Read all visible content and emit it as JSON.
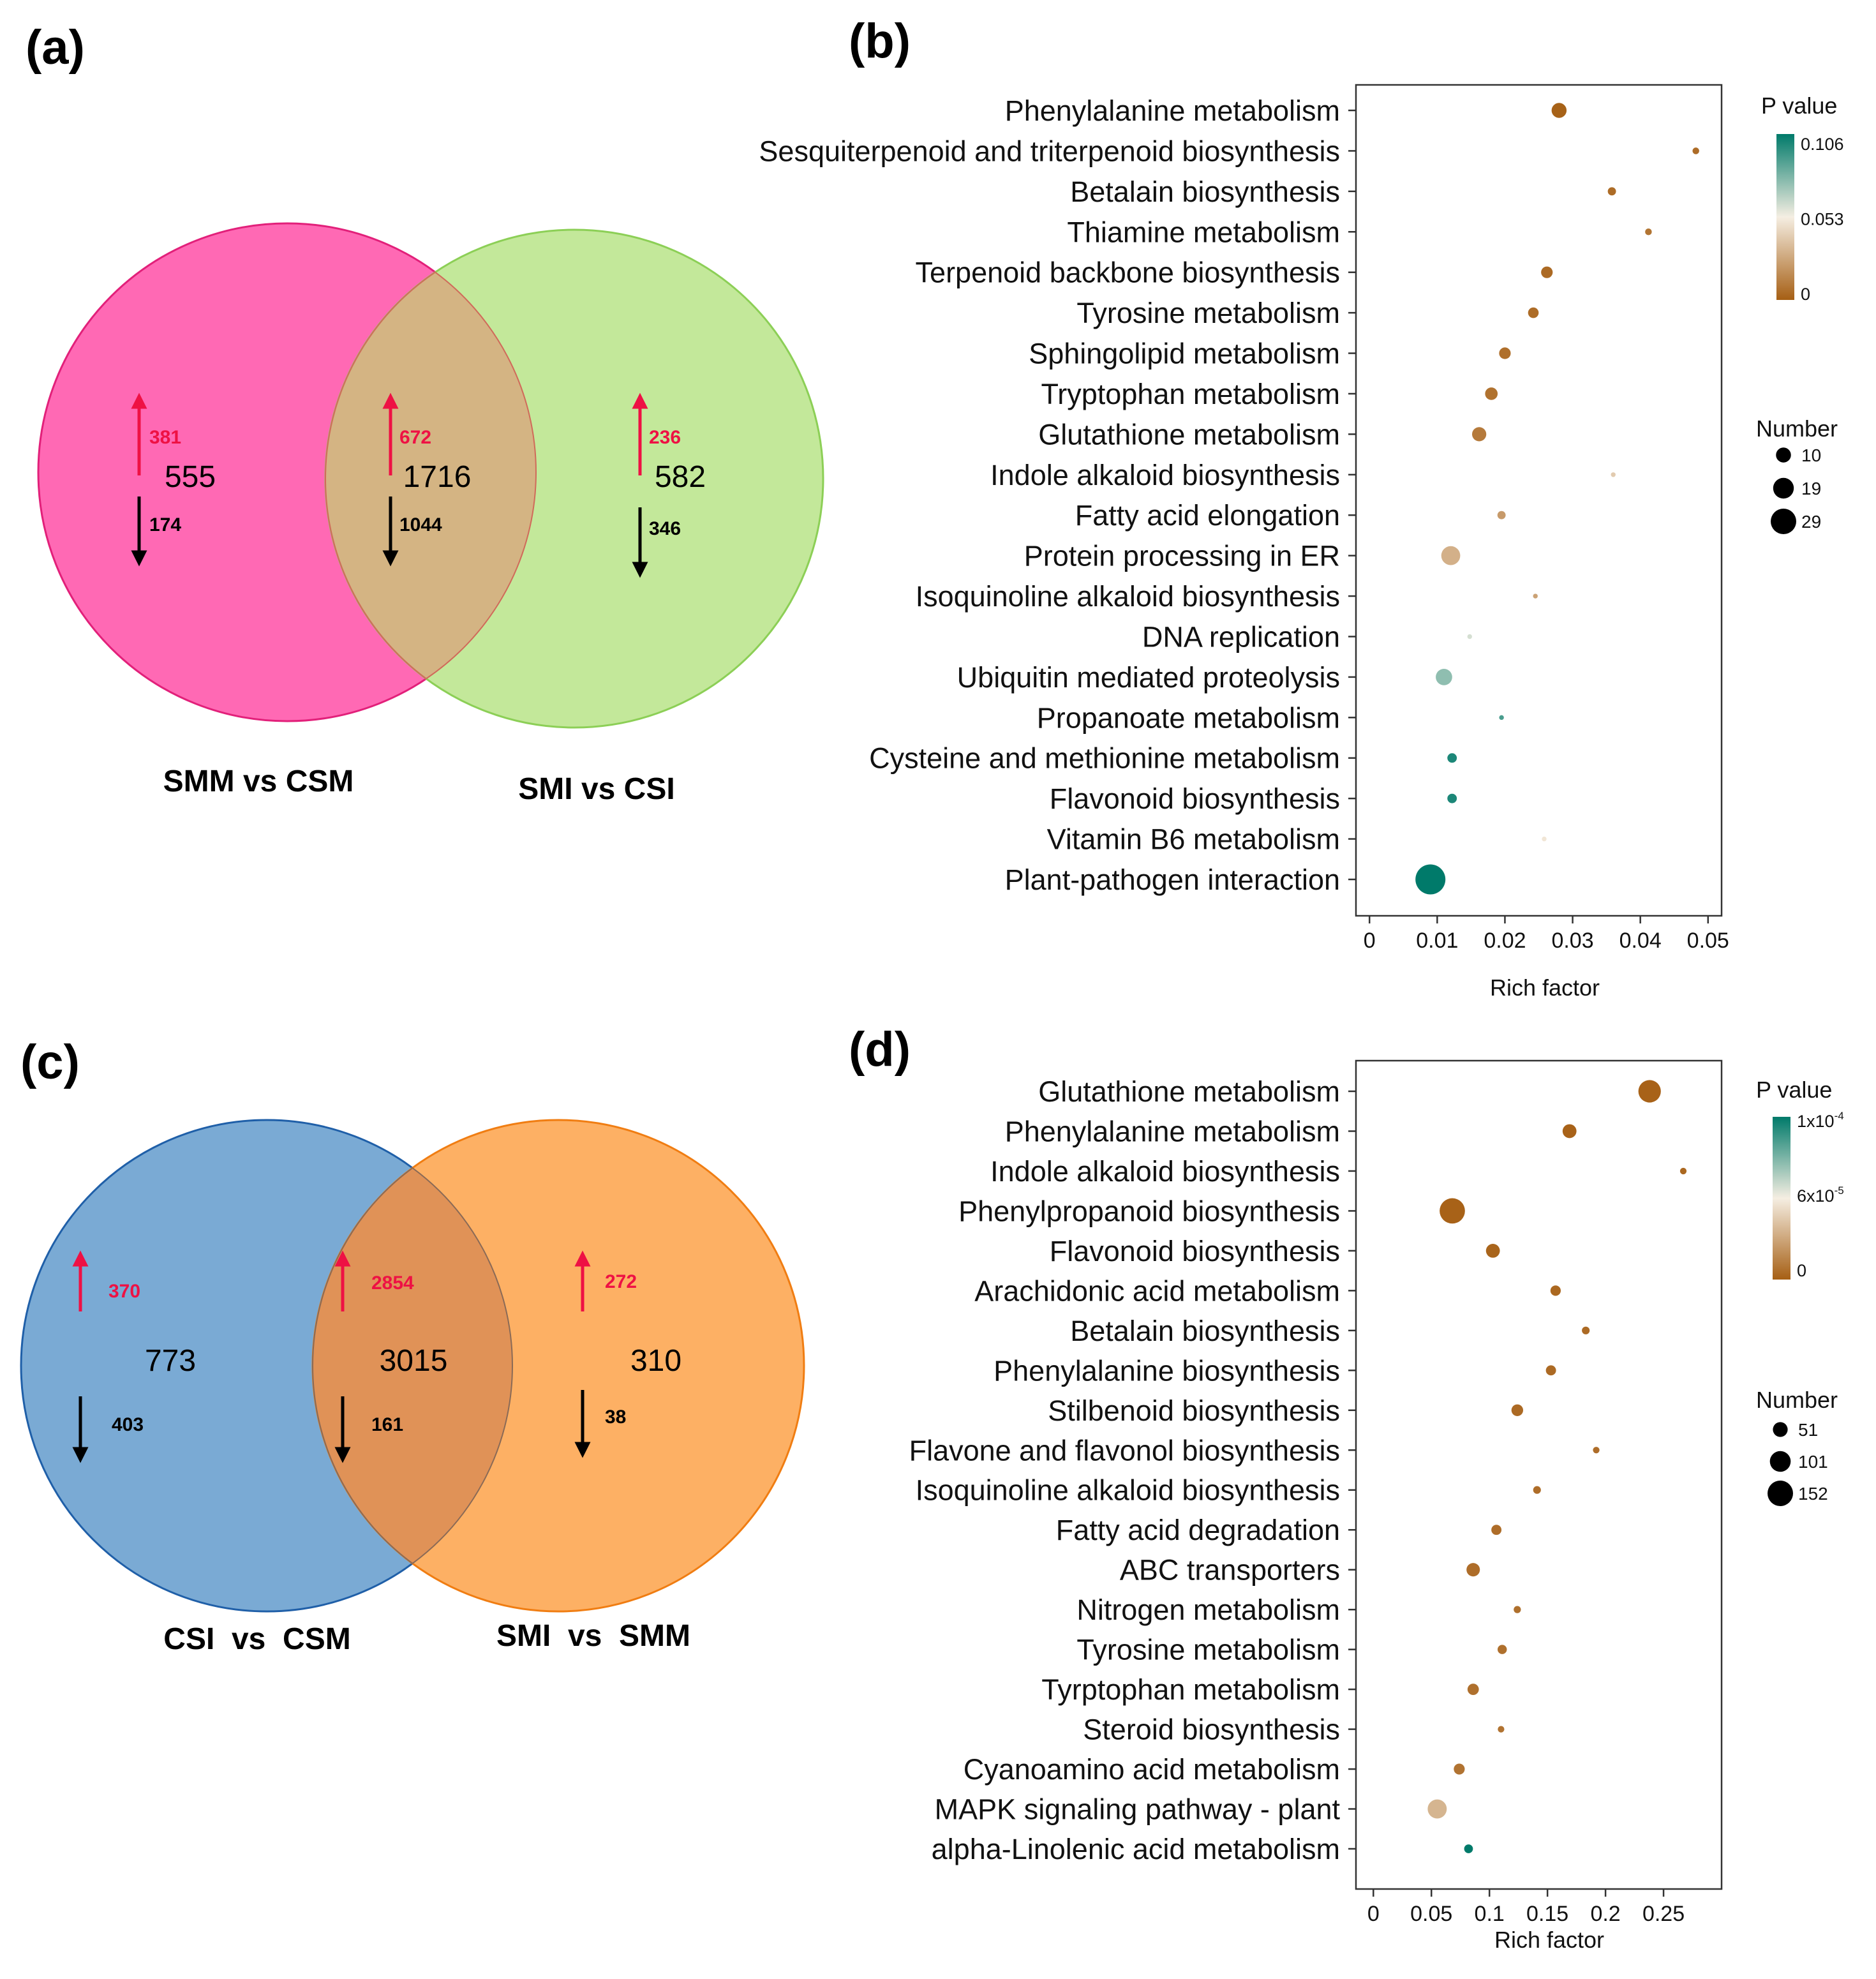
{
  "panels": [
    {
      "label": "(a)"
    },
    {
      "label": "(b)"
    },
    {
      "label": "(c)"
    },
    {
      "label": "(d)"
    }
  ],
  "chart_data": [
    {
      "type": "venn",
      "panel": "(a)",
      "sets": [
        {
          "name": "SMM vs CSM",
          "color": "#ff69b4"
        },
        {
          "name": "SMI vs CSI",
          "color": "#c3e89a"
        }
      ],
      "regions": [
        {
          "region": "only-1",
          "total": "555",
          "up": "381",
          "down": "174"
        },
        {
          "region": "overlap",
          "total": "1716",
          "up": "672",
          "down": "1044"
        },
        {
          "region": "only-2",
          "total": "582",
          "up": "236",
          "down": "346"
        }
      ],
      "overlap_color": "#d4b483",
      "up_color": "#ee1144",
      "down_color": "#000000"
    },
    {
      "type": "scatter",
      "panel": "(b)",
      "title": "",
      "xlabel": "Rich factor",
      "ylabel": "",
      "xlim": [
        -0.002,
        0.052
      ],
      "xticks": [
        0,
        0.01,
        0.02,
        0.03,
        0.04,
        0.05
      ],
      "xtick_labels": [
        "0",
        "0.01",
        "0.02",
        "0.03",
        "0.04",
        "0.05"
      ],
      "grid": false,
      "legend_position": "right",
      "color_scale": {
        "title": "P value",
        "min": 0,
        "max": 0.106,
        "tick_labels": [
          "0.106",
          "0.053",
          "0"
        ],
        "low_color": "#a65f14",
        "mid_color": "#f5eee2",
        "high_color": "#007a6a"
      },
      "size_scale": {
        "title": "Number",
        "values": [
          10,
          19,
          29
        ],
        "labels": [
          "10",
          "19",
          "29"
        ]
      },
      "points": [
        {
          "pathway": "Phenylalanine metabolism",
          "rich_factor": 0.028,
          "p_value": 0.001,
          "number": 10
        },
        {
          "pathway": "Sesquiterpenoid and triterpenoid biosynthesis",
          "rich_factor": 0.0482,
          "p_value": 0.005,
          "number": 2
        },
        {
          "pathway": "Betalain biosynthesis",
          "rich_factor": 0.0358,
          "p_value": 0.005,
          "number": 3
        },
        {
          "pathway": "Thiamine metabolism",
          "rich_factor": 0.0412,
          "p_value": 0.008,
          "number": 2
        },
        {
          "pathway": "Terpenoid backbone biosynthesis",
          "rich_factor": 0.0262,
          "p_value": 0.004,
          "number": 6
        },
        {
          "pathway": "Tyrosine metabolism",
          "rich_factor": 0.0242,
          "p_value": 0.005,
          "number": 5
        },
        {
          "pathway": "Sphingolipid metabolism",
          "rich_factor": 0.02,
          "p_value": 0.006,
          "number": 6
        },
        {
          "pathway": "Tryptophan metabolism",
          "rich_factor": 0.018,
          "p_value": 0.007,
          "number": 7
        },
        {
          "pathway": "Glutathione metabolism",
          "rich_factor": 0.0162,
          "p_value": 0.01,
          "number": 9
        },
        {
          "pathway": "Indole alkaloid biosynthesis",
          "rich_factor": 0.036,
          "p_value": 0.04,
          "number": 1
        },
        {
          "pathway": "Fatty acid elongation",
          "rich_factor": 0.0195,
          "p_value": 0.022,
          "number": 3
        },
        {
          "pathway": "Protein processing in ER",
          "rich_factor": 0.012,
          "p_value": 0.03,
          "number": 16
        },
        {
          "pathway": "Isoquinoline alkaloid biosynthesis",
          "rich_factor": 0.0245,
          "p_value": 0.025,
          "number": 1
        },
        {
          "pathway": "DNA replication",
          "rich_factor": 0.0148,
          "p_value": 0.06,
          "number": 1
        },
        {
          "pathway": "Ubiquitin mediated proteolysis",
          "rich_factor": 0.011,
          "p_value": 0.075,
          "number": 12
        },
        {
          "pathway": "Propanoate metabolism",
          "rich_factor": 0.0195,
          "p_value": 0.09,
          "number": 1
        },
        {
          "pathway": "Cysteine and methionine metabolism",
          "rich_factor": 0.0122,
          "p_value": 0.1,
          "number": 4
        },
        {
          "pathway": "Flavonoid biosynthesis",
          "rich_factor": 0.0122,
          "p_value": 0.1,
          "number": 4
        },
        {
          "pathway": "Vitamin B6 metabolism",
          "rich_factor": 0.0258,
          "p_value": 0.05,
          "number": 1
        },
        {
          "pathway": "Plant-pathogen interaction",
          "rich_factor": 0.009,
          "p_value": 0.106,
          "number": 40
        }
      ]
    },
    {
      "type": "venn",
      "panel": "(c)",
      "sets": [
        {
          "name": "CSI  vs  CSM",
          "color": "#7aaad4"
        },
        {
          "name": "SMI  vs  SMM",
          "color": "#fdb064"
        }
      ],
      "regions": [
        {
          "region": "only-1",
          "total": "773",
          "up": "370",
          "down": "403"
        },
        {
          "region": "overlap",
          "total": "3015",
          "up": "2854",
          "down": "161"
        },
        {
          "region": "only-2",
          "total": "310",
          "up": "272",
          "down": "38"
        }
      ],
      "overlap_color": "#e09257",
      "up_color": "#ee1144",
      "down_color": "#000000"
    },
    {
      "type": "scatter",
      "panel": "(d)",
      "title": "",
      "xlabel": "Rich factor",
      "ylabel": "",
      "xlim": [
        -0.015,
        0.3
      ],
      "xticks": [
        0,
        0.05,
        0.1,
        0.15,
        0.2,
        0.25
      ],
      "xtick_labels": [
        "0",
        "0.05",
        "0.1",
        "0.15",
        "0.2",
        "0.25"
      ],
      "grid": false,
      "legend_position": "right",
      "color_scale": {
        "title": "P value",
        "min": 0,
        "max": 0.0001,
        "tick_labels": [
          "1x10",
          "6x10",
          "0"
        ],
        "tick_superscripts": [
          "-4",
          "-5",
          ""
        ],
        "low_color": "#a65f14",
        "mid_color": "#f5eee2",
        "high_color": "#007a6a"
      },
      "size_scale": {
        "title": "Number",
        "values": [
          51,
          101,
          152
        ],
        "labels": [
          "51",
          "101",
          "152"
        ]
      },
      "points": [
        {
          "pathway": "Glutathione metabolism",
          "rich_factor": 0.238,
          "p_value": 1e-06,
          "number": 118
        },
        {
          "pathway": "Phenylalanine metabolism",
          "rich_factor": 0.169,
          "p_value": 1e-06,
          "number": 45
        },
        {
          "pathway": "Indole alkaloid biosynthesis",
          "rich_factor": 0.267,
          "p_value": 3e-06,
          "number": 10
        },
        {
          "pathway": "Phenylpropanoid biosynthesis",
          "rich_factor": 0.068,
          "p_value": 1e-06,
          "number": 150
        },
        {
          "pathway": "Flavonoid biosynthesis",
          "rich_factor": 0.103,
          "p_value": 2e-06,
          "number": 45
        },
        {
          "pathway": "Arachidonic acid metabolism",
          "rich_factor": 0.157,
          "p_value": 3e-06,
          "number": 25
        },
        {
          "pathway": "Betalain biosynthesis",
          "rich_factor": 0.183,
          "p_value": 4e-06,
          "number": 14
        },
        {
          "pathway": "Phenylalanine biosynthesis",
          "rich_factor": 0.153,
          "p_value": 4e-06,
          "number": 24
        },
        {
          "pathway": "Stilbenoid biosynthesis",
          "rich_factor": 0.124,
          "p_value": 4e-06,
          "number": 32
        },
        {
          "pathway": "Flavone and flavonol biosynthesis",
          "rich_factor": 0.192,
          "p_value": 5e-06,
          "number": 10
        },
        {
          "pathway": "Isoquinoline alkaloid biosynthesis",
          "rich_factor": 0.141,
          "p_value": 5e-06,
          "number": 14
        },
        {
          "pathway": "Fatty acid degradation",
          "rich_factor": 0.106,
          "p_value": 5e-06,
          "number": 24
        },
        {
          "pathway": "ABC transporters",
          "rich_factor": 0.086,
          "p_value": 5e-06,
          "number": 42
        },
        {
          "pathway": "Nitrogen metabolism",
          "rich_factor": 0.124,
          "p_value": 6e-06,
          "number": 12
        },
        {
          "pathway": "Tyrosine metabolism",
          "rich_factor": 0.111,
          "p_value": 6e-06,
          "number": 20
        },
        {
          "pathway": "Tyrptophan metabolism",
          "rich_factor": 0.086,
          "p_value": 6e-06,
          "number": 30
        },
        {
          "pathway": "Steroid biosynthesis",
          "rich_factor": 0.11,
          "p_value": 7e-06,
          "number": 10
        },
        {
          "pathway": "Cyanoamino acid metabolism",
          "rich_factor": 0.074,
          "p_value": 7e-06,
          "number": 28
        },
        {
          "pathway": "MAPK signaling pathway - plant",
          "rich_factor": 0.055,
          "p_value": 3e-05,
          "number": 85
        },
        {
          "pathway": "alpha-Linolenic acid metabolism",
          "rich_factor": 0.082,
          "p_value": 0.0001,
          "number": 18
        }
      ]
    }
  ]
}
